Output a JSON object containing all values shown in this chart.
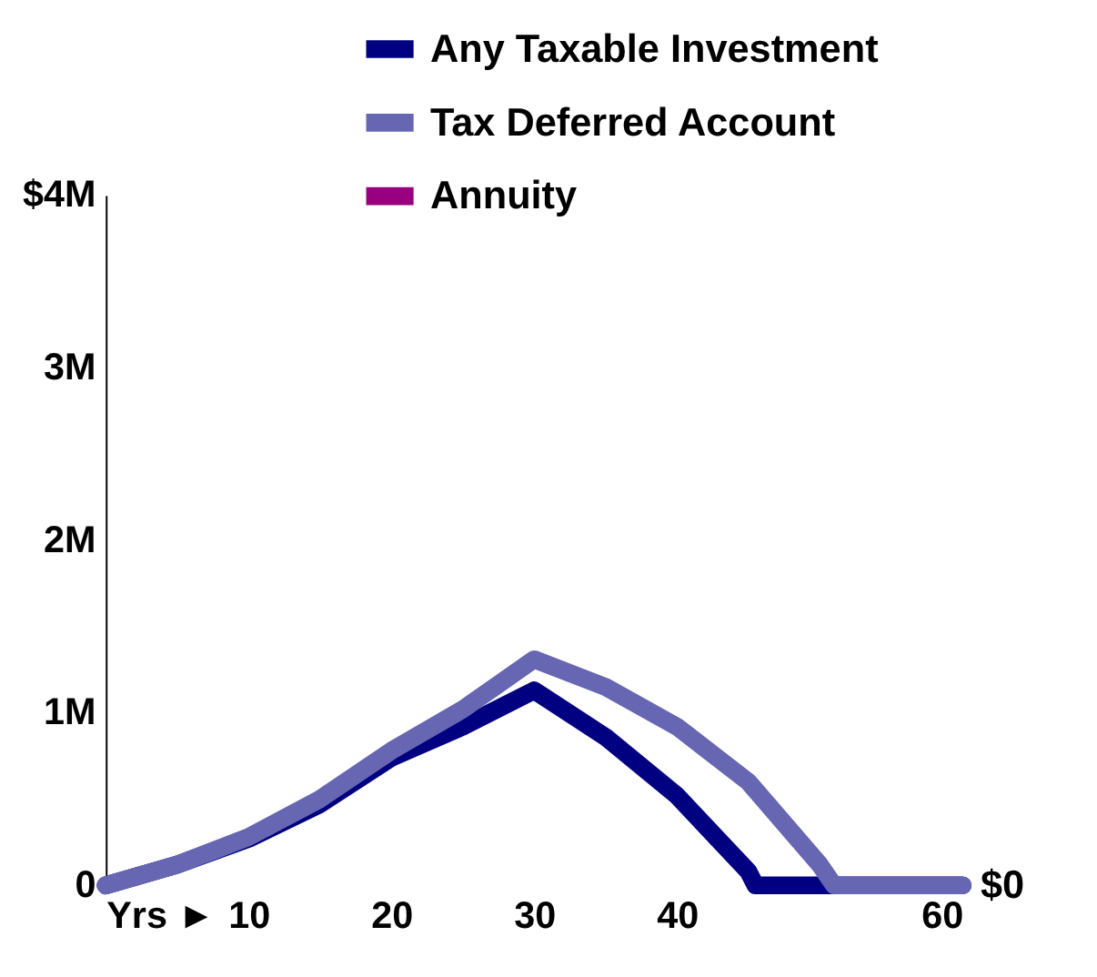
{
  "chart_data": {
    "type": "line",
    "x": [
      0,
      5,
      10,
      15,
      20,
      25,
      30,
      35,
      40,
      45,
      45.5,
      50,
      55,
      60
    ],
    "series": [
      {
        "name": "Any Taxable Investment",
        "color": "#000080",
        "values": [
          0,
          0.12,
          0.27,
          0.47,
          0.74,
          0.92,
          1.13,
          0.86,
          0.52,
          0.08,
          0,
          0,
          0,
          0
        ]
      },
      {
        "name": "Tax Deferred Account",
        "color": "#6666b3",
        "x": [
          0,
          5,
          10,
          15,
          20,
          25,
          30,
          35,
          40,
          45,
          50,
          51,
          55,
          60
        ],
        "values": [
          0,
          0.12,
          0.28,
          0.5,
          0.78,
          1.02,
          1.31,
          1.15,
          0.92,
          0.6,
          0.12,
          0,
          0,
          0
        ]
      },
      {
        "name": "Annuity",
        "color": "#990080",
        "values": [
          null,
          null,
          null,
          null,
          null,
          null,
          null,
          null,
          null,
          null,
          null,
          null,
          null,
          null
        ]
      }
    ],
    "xlim": [
      0,
      60
    ],
    "xticks": [
      {
        "value": 0,
        "label": "Yrs ►"
      },
      10,
      20,
      30,
      40,
      60
    ],
    "ylim": [
      0,
      4
    ],
    "yticks": [
      0,
      {
        "value": 1,
        "label": "1M"
      },
      {
        "value": 2,
        "label": "2M"
      },
      {
        "value": 3,
        "label": "3M"
      },
      {
        "value": 4,
        "label": "$4M"
      }
    ],
    "annotations": [
      {
        "text": "$0",
        "x": 60,
        "y": 0
      }
    ],
    "legend": "top",
    "grid": false,
    "marker": "none",
    "line_style": "solid"
  }
}
